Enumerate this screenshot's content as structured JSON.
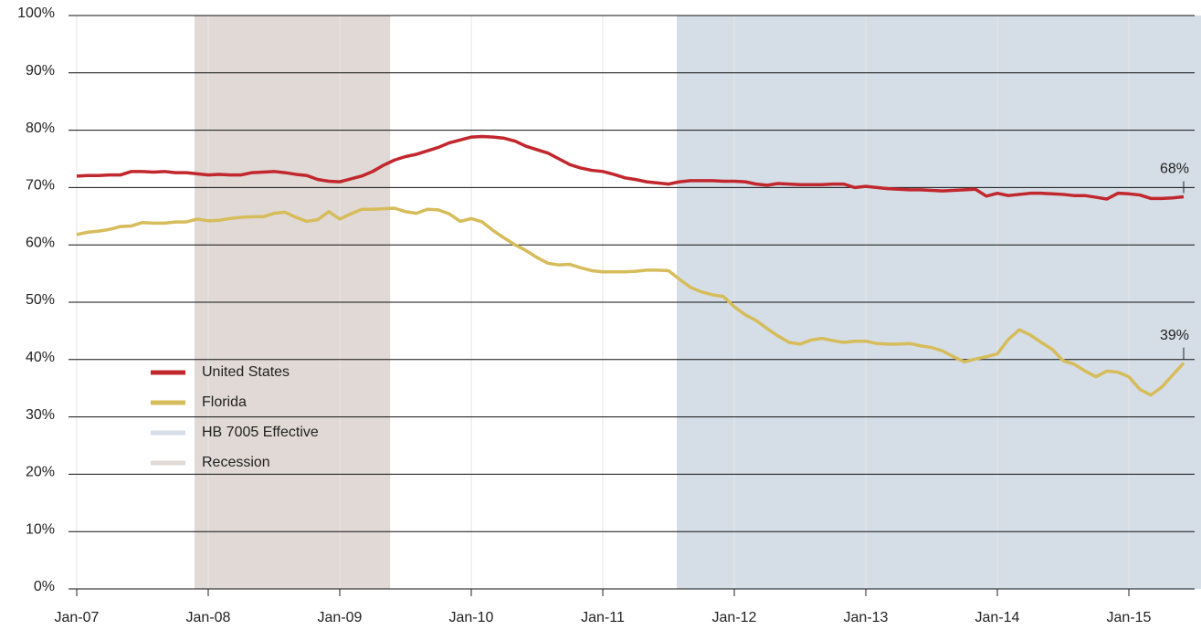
{
  "chart_data": {
    "type": "line",
    "categories": [
      "Jan-07",
      null,
      null,
      null,
      null,
      null,
      null,
      null,
      null,
      null,
      null,
      null,
      "Jan-08",
      null,
      null,
      null,
      null,
      null,
      null,
      null,
      null,
      null,
      null,
      null,
      "Jan-09",
      null,
      null,
      null,
      null,
      null,
      null,
      null,
      null,
      null,
      null,
      null,
      "Jan-10",
      null,
      null,
      null,
      null,
      null,
      null,
      null,
      null,
      null,
      null,
      null,
      "Jan-11",
      null,
      null,
      null,
      null,
      null,
      null,
      null,
      null,
      null,
      null,
      null,
      "Jan-12",
      null,
      null,
      null,
      null,
      null,
      null,
      null,
      null,
      null,
      null,
      null,
      "Jan-13",
      null,
      null,
      null,
      null,
      null,
      null,
      null,
      null,
      null,
      null,
      null,
      "Jan-14",
      null,
      null,
      null,
      null,
      null,
      null,
      null,
      null,
      null,
      null,
      null,
      "Jan-15",
      null,
      null,
      null,
      null,
      null
    ],
    "series": [
      {
        "name": "United States",
        "color": "#c1272d",
        "values": [
          72.0,
          72.1,
          72.1,
          72.2,
          72.2,
          72.8,
          72.8,
          72.7,
          72.8,
          72.6,
          72.6,
          72.4,
          72.2,
          72.3,
          72.2,
          72.2,
          72.6,
          72.7,
          72.8,
          72.6,
          72.3,
          72.1,
          71.4,
          71.1,
          71.0,
          71.5,
          72.0,
          72.8,
          73.9,
          74.8,
          75.4,
          75.8,
          76.4,
          77.0,
          77.8,
          78.3,
          78.8,
          78.9,
          78.8,
          78.6,
          78.1,
          77.2,
          76.6,
          76.0,
          75.0,
          74.0,
          73.4,
          73.0,
          72.8,
          72.3,
          71.7,
          71.4,
          71.0,
          70.8,
          70.6,
          71.0,
          71.2,
          71.2,
          71.2,
          71.1,
          71.1,
          71.0,
          70.6,
          70.4,
          70.7,
          70.6,
          70.5,
          70.5,
          70.5,
          70.6,
          70.6,
          70.0,
          70.2,
          70.0,
          69.8,
          69.7,
          69.6,
          69.6,
          69.5,
          69.4,
          69.5,
          69.6,
          69.7,
          68.5,
          69.0,
          68.6,
          68.8,
          69.0,
          69.0,
          68.9,
          68.8,
          68.6,
          68.6,
          68.3,
          68.0,
          69.0,
          68.9,
          68.7,
          68.1,
          68.1,
          68.2,
          68.4
        ],
        "value_labels": [
          null,
          null,
          null,
          null,
          null,
          null,
          null,
          null,
          null,
          null,
          null,
          null,
          null,
          null,
          null,
          null,
          null,
          null,
          null,
          null,
          null,
          null,
          null,
          null,
          null,
          null,
          null,
          null,
          null,
          null,
          null,
          null,
          null,
          null,
          null,
          null,
          null,
          null,
          null,
          null,
          null,
          null,
          null,
          null,
          null,
          null,
          null,
          null,
          null,
          null,
          null,
          null,
          null,
          null,
          null,
          null,
          null,
          null,
          null,
          null,
          null,
          null,
          null,
          null,
          null,
          null,
          null,
          null,
          null,
          null,
          null,
          null,
          null,
          null,
          null,
          null,
          null,
          null,
          null,
          null,
          null,
          null,
          null,
          null,
          null,
          null,
          null,
          null,
          null,
          null,
          null,
          null,
          null,
          null,
          null,
          null,
          null,
          null,
          null,
          null,
          null,
          "68%"
        ]
      },
      {
        "name": "Florida",
        "color": "#d6bc5a",
        "values": [
          61.8,
          62.2,
          62.4,
          62.7,
          63.2,
          63.3,
          63.9,
          63.8,
          63.8,
          64.0,
          64.0,
          64.5,
          64.2,
          64.3,
          64.6,
          64.8,
          64.9,
          64.9,
          65.5,
          65.7,
          64.8,
          64.1,
          64.4,
          65.8,
          64.5,
          65.4,
          66.2,
          66.2,
          66.3,
          66.4,
          65.8,
          65.5,
          66.2,
          66.1,
          65.4,
          64.1,
          64.6,
          64.0,
          62.5,
          61.2,
          60.0,
          59.0,
          57.8,
          56.8,
          56.5,
          56.6,
          56.0,
          55.5,
          55.3,
          55.3,
          55.3,
          55.4,
          55.6,
          55.6,
          55.5,
          54.0,
          52.6,
          51.8,
          51.3,
          51.0,
          49.2,
          47.8,
          46.8,
          45.4,
          44.1,
          43.0,
          42.7,
          43.4,
          43.7,
          43.3,
          43.0,
          43.2,
          43.2,
          42.8,
          42.7,
          42.7,
          42.8,
          42.4,
          42.1,
          41.5,
          40.5,
          39.6,
          40.1,
          40.5,
          41.0,
          43.5,
          45.2,
          44.3,
          43.0,
          41.8,
          39.8,
          39.2,
          38.0,
          37.0,
          38.0,
          37.8,
          37.0,
          34.8,
          33.8,
          35.2,
          37.3,
          39.4
        ],
        "value_labels": [
          null,
          null,
          null,
          null,
          null,
          null,
          null,
          null,
          null,
          null,
          null,
          null,
          null,
          null,
          null,
          null,
          null,
          null,
          null,
          null,
          null,
          null,
          null,
          null,
          null,
          null,
          null,
          null,
          null,
          null,
          null,
          null,
          null,
          null,
          null,
          null,
          null,
          null,
          null,
          null,
          null,
          null,
          null,
          null,
          null,
          null,
          null,
          null,
          null,
          null,
          null,
          null,
          null,
          null,
          null,
          null,
          null,
          null,
          null,
          null,
          null,
          null,
          null,
          null,
          null,
          null,
          null,
          null,
          null,
          null,
          null,
          null,
          null,
          null,
          null,
          null,
          null,
          null,
          null,
          null,
          null,
          null,
          null,
          null,
          null,
          null,
          null,
          null,
          null,
          null,
          null,
          null,
          null,
          null,
          null,
          null,
          null,
          null,
          null,
          null,
          null,
          "39%"
        ]
      }
    ],
    "regions": [
      {
        "name": "HB 7005 Effective",
        "color": "#d5dee7",
        "start": 54.75,
        "end": 102.6
      },
      {
        "name": "Recession",
        "color": "#e0d9d6",
        "start": 10.75,
        "end": 28.6
      }
    ],
    "ylim": [
      0,
      100
    ],
    "yticks": [
      {
        "value": 0,
        "label": "0%"
      },
      {
        "value": 10,
        "label": "10%"
      },
      {
        "value": 20,
        "label": "20%"
      },
      {
        "value": 30,
        "label": "30%"
      },
      {
        "value": 40,
        "label": "40%"
      },
      {
        "value": 50,
        "label": "50%"
      },
      {
        "value": 60,
        "label": "60%"
      },
      {
        "value": 70,
        "label": "70%"
      },
      {
        "value": 80,
        "label": "80%"
      },
      {
        "value": 90,
        "label": "90%"
      },
      {
        "value": 100,
        "label": "100%"
      }
    ],
    "grid": true,
    "legend": "lower-left"
  }
}
